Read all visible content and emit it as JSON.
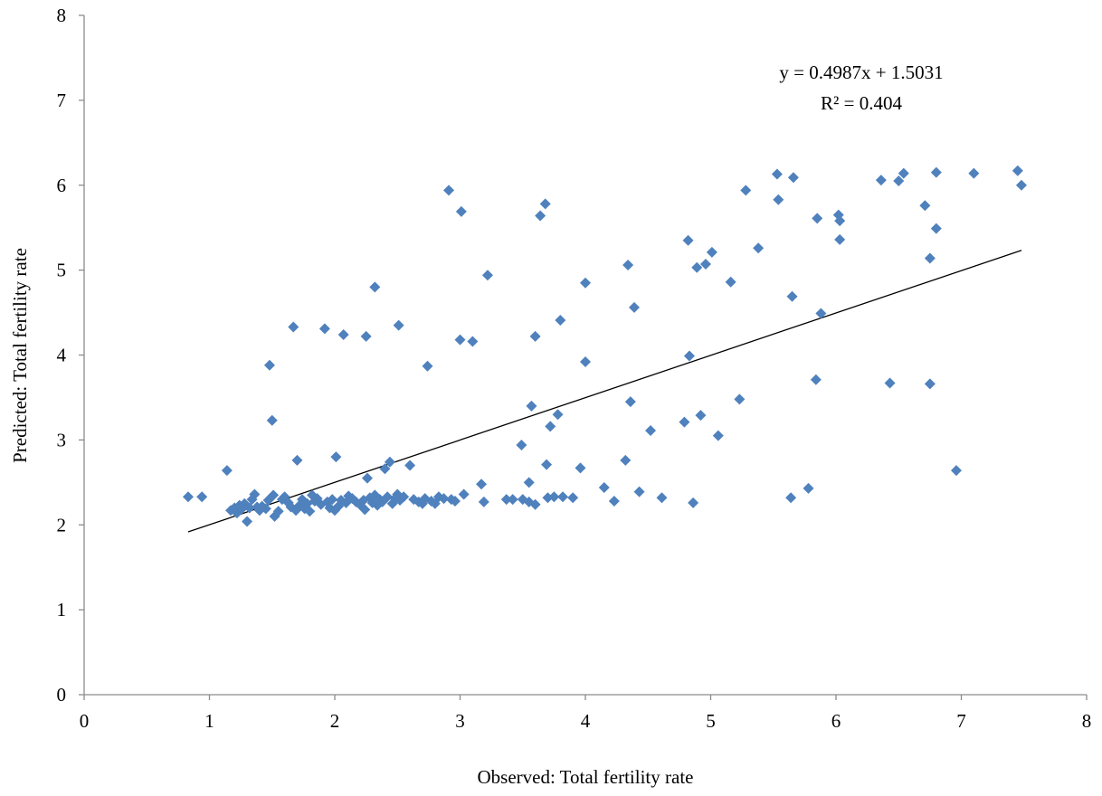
{
  "chart_data": {
    "type": "scatter",
    "xlabel": "Observed: Total fertility rate",
    "ylabel": "Predicted:  Total fertility rate",
    "xlim": [
      0,
      8
    ],
    "ylim": [
      0,
      8
    ],
    "xticks": [
      "0",
      "1",
      "2",
      "3",
      "4",
      "5",
      "6",
      "7",
      "8"
    ],
    "yticks": [
      "0",
      "1",
      "2",
      "3",
      "4",
      "5",
      "6",
      "7",
      "8"
    ],
    "grid": false,
    "legend": "none",
    "marker": "diamond",
    "marker_color": "#4f81bd",
    "trendline": {
      "equation": "y = 0.4987x + 1.5031",
      "r_squared": "R² = 0.404",
      "slope": 0.4987,
      "intercept": 1.5031,
      "x_range": [
        0.83,
        7.48
      ],
      "color": "#000000"
    },
    "points": [
      [
        0.83,
        2.33
      ],
      [
        0.94,
        2.33
      ],
      [
        1.14,
        2.64
      ],
      [
        1.17,
        2.17
      ],
      [
        1.2,
        2.2
      ],
      [
        1.22,
        2.14
      ],
      [
        1.24,
        2.23
      ],
      [
        1.26,
        2.19
      ],
      [
        1.28,
        2.25
      ],
      [
        1.3,
        2.04
      ],
      [
        1.32,
        2.2
      ],
      [
        1.34,
        2.3
      ],
      [
        1.36,
        2.36
      ],
      [
        1.38,
        2.21
      ],
      [
        1.4,
        2.17
      ],
      [
        1.42,
        2.22
      ],
      [
        1.45,
        2.19
      ],
      [
        1.47,
        2.29
      ],
      [
        1.48,
        3.88
      ],
      [
        1.5,
        3.23
      ],
      [
        1.51,
        2.35
      ],
      [
        1.52,
        2.1
      ],
      [
        1.55,
        2.16
      ],
      [
        1.58,
        2.3
      ],
      [
        1.6,
        2.33
      ],
      [
        1.63,
        2.26
      ],
      [
        1.65,
        2.21
      ],
      [
        1.67,
        4.33
      ],
      [
        1.69,
        2.17
      ],
      [
        1.7,
        2.76
      ],
      [
        1.72,
        2.23
      ],
      [
        1.74,
        2.3
      ],
      [
        1.76,
        2.19
      ],
      [
        1.78,
        2.25
      ],
      [
        1.8,
        2.16
      ],
      [
        1.82,
        2.35
      ],
      [
        1.84,
        2.28
      ],
      [
        1.86,
        2.31
      ],
      [
        1.89,
        2.24
      ],
      [
        1.92,
        4.31
      ],
      [
        1.94,
        2.27
      ],
      [
        1.96,
        2.2
      ],
      [
        1.98,
        2.3
      ],
      [
        2.0,
        2.17
      ],
      [
        2.01,
        2.8
      ],
      [
        2.03,
        2.22
      ],
      [
        2.05,
        2.29
      ],
      [
        2.07,
        4.24
      ],
      [
        2.09,
        2.26
      ],
      [
        2.11,
        2.34
      ],
      [
        2.14,
        2.31
      ],
      [
        2.17,
        2.27
      ],
      [
        2.2,
        2.24
      ],
      [
        2.23,
        2.29
      ],
      [
        2.24,
        2.18
      ],
      [
        2.25,
        4.22
      ],
      [
        2.26,
        2.55
      ],
      [
        2.28,
        2.32
      ],
      [
        2.3,
        2.26
      ],
      [
        2.32,
        2.35
      ],
      [
        2.32,
        4.8
      ],
      [
        2.34,
        2.23
      ],
      [
        2.36,
        2.3
      ],
      [
        2.38,
        2.27
      ],
      [
        2.4,
        2.66
      ],
      [
        2.42,
        2.33
      ],
      [
        2.44,
        2.74
      ],
      [
        2.46,
        2.25
      ],
      [
        2.48,
        2.31
      ],
      [
        2.5,
        2.36
      ],
      [
        2.51,
        4.35
      ],
      [
        2.52,
        2.29
      ],
      [
        2.55,
        2.33
      ],
      [
        2.6,
        2.7
      ],
      [
        2.63,
        2.3
      ],
      [
        2.67,
        2.27
      ],
      [
        2.7,
        2.25
      ],
      [
        2.72,
        2.31
      ],
      [
        2.74,
        3.87
      ],
      [
        2.77,
        2.28
      ],
      [
        2.8,
        2.25
      ],
      [
        2.83,
        2.33
      ],
      [
        2.87,
        2.31
      ],
      [
        2.91,
        5.94
      ],
      [
        2.93,
        2.3
      ],
      [
        2.96,
        2.28
      ],
      [
        3.0,
        4.18
      ],
      [
        3.01,
        5.69
      ],
      [
        3.03,
        2.36
      ],
      [
        3.1,
        4.16
      ],
      [
        3.17,
        2.48
      ],
      [
        3.19,
        2.27
      ],
      [
        3.22,
        4.94
      ],
      [
        3.37,
        2.3
      ],
      [
        3.42,
        2.3
      ],
      [
        3.49,
        2.94
      ],
      [
        3.5,
        2.3
      ],
      [
        3.55,
        2.5
      ],
      [
        3.55,
        2.27
      ],
      [
        3.57,
        3.4
      ],
      [
        3.6,
        2.24
      ],
      [
        3.6,
        4.22
      ],
      [
        3.64,
        5.64
      ],
      [
        3.68,
        5.78
      ],
      [
        3.69,
        2.71
      ],
      [
        3.7,
        2.32
      ],
      [
        3.72,
        3.16
      ],
      [
        3.75,
        2.33
      ],
      [
        3.78,
        3.3
      ],
      [
        3.8,
        4.41
      ],
      [
        3.82,
        2.33
      ],
      [
        3.9,
        2.32
      ],
      [
        3.96,
        2.67
      ],
      [
        4.0,
        3.92
      ],
      [
        4.0,
        4.85
      ],
      [
        4.15,
        2.44
      ],
      [
        4.23,
        2.28
      ],
      [
        4.32,
        2.76
      ],
      [
        4.34,
        5.06
      ],
      [
        4.36,
        3.45
      ],
      [
        4.39,
        4.56
      ],
      [
        4.43,
        2.39
      ],
      [
        4.52,
        3.11
      ],
      [
        4.61,
        2.32
      ],
      [
        4.79,
        3.21
      ],
      [
        4.82,
        5.35
      ],
      [
        4.83,
        3.99
      ],
      [
        4.86,
        2.26
      ],
      [
        4.89,
        5.03
      ],
      [
        4.92,
        3.29
      ],
      [
        4.96,
        5.07
      ],
      [
        5.01,
        5.21
      ],
      [
        5.06,
        3.05
      ],
      [
        5.16,
        4.86
      ],
      [
        5.23,
        3.48
      ],
      [
        5.28,
        5.94
      ],
      [
        5.38,
        5.26
      ],
      [
        5.53,
        6.13
      ],
      [
        5.54,
        5.83
      ],
      [
        5.64,
        2.32
      ],
      [
        5.65,
        4.69
      ],
      [
        5.66,
        6.09
      ],
      [
        5.78,
        2.43
      ],
      [
        5.84,
        3.71
      ],
      [
        5.85,
        5.61
      ],
      [
        5.88,
        4.49
      ],
      [
        6.02,
        5.65
      ],
      [
        6.03,
        5.36
      ],
      [
        6.03,
        5.58
      ],
      [
        6.36,
        6.06
      ],
      [
        6.43,
        3.67
      ],
      [
        6.5,
        6.05
      ],
      [
        6.54,
        6.14
      ],
      [
        6.71,
        5.76
      ],
      [
        6.75,
        3.66
      ],
      [
        6.75,
        5.14
      ],
      [
        6.8,
        5.49
      ],
      [
        6.8,
        6.15
      ],
      [
        6.96,
        2.64
      ],
      [
        7.1,
        6.14
      ],
      [
        7.45,
        6.17
      ],
      [
        7.48,
        6.0
      ]
    ]
  }
}
